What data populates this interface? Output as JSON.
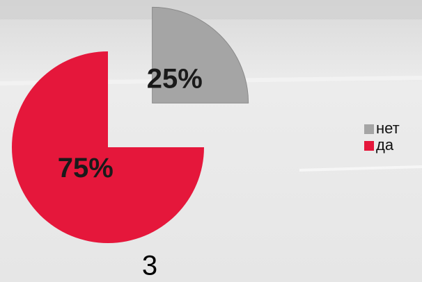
{
  "chart_data": {
    "type": "pie",
    "categories": [
      "нет",
      "да"
    ],
    "values": [
      25,
      75
    ],
    "value_labels": [
      "25%",
      "75%"
    ],
    "colors": [
      "#a5a5a5",
      "#e5173b"
    ],
    "caption": "3"
  }
}
